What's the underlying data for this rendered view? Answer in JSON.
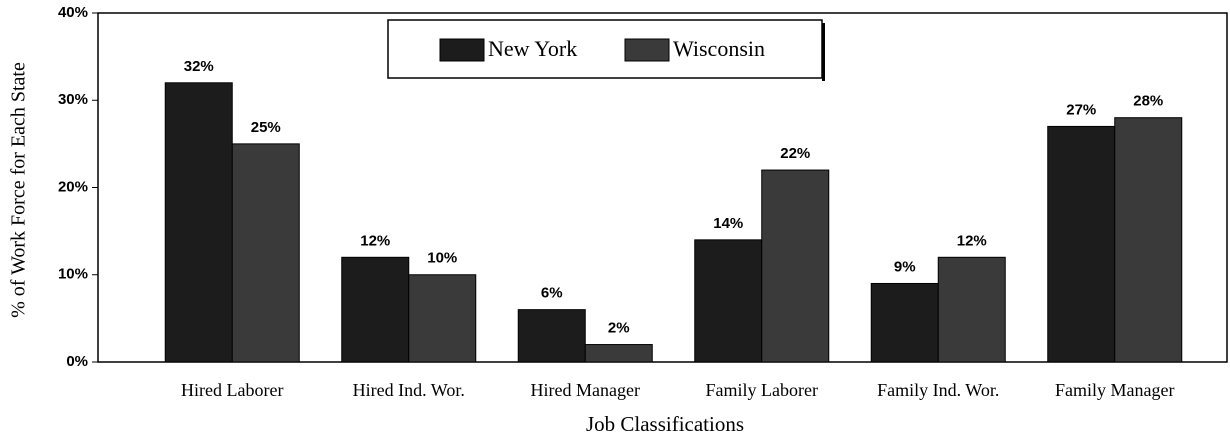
{
  "chart_data": {
    "type": "bar",
    "categories": [
      "Hired Laborer",
      "Hired Ind. Wor.",
      "Hired Manager",
      "Family Laborer",
      "Family Ind. Wor.",
      "Family Manager"
    ],
    "series": [
      {
        "name": "New York",
        "color": "#1c1c1c",
        "values": [
          32,
          12,
          6,
          14,
          9,
          27
        ],
        "value_labels": [
          "32%",
          "12%",
          "6%",
          "14%",
          "9%",
          "27%"
        ]
      },
      {
        "name": "Wisconsin",
        "color": "#3a3a3a",
        "values": [
          25,
          10,
          2,
          22,
          12,
          28
        ],
        "value_labels": [
          "25%",
          "10%",
          "2%",
          "22%",
          "12%",
          "28%"
        ]
      }
    ],
    "x_label": "Job Classifications",
    "y_label": "% of Work Force for Each State",
    "ylim": [
      0,
      40
    ],
    "yticks": [
      {
        "value": 0,
        "label": "0%"
      },
      {
        "value": 10,
        "label": "10%"
      },
      {
        "value": 20,
        "label": "20%"
      },
      {
        "value": 30,
        "label": "30%"
      },
      {
        "value": 40,
        "label": "40%"
      }
    ],
    "legend": "top"
  }
}
